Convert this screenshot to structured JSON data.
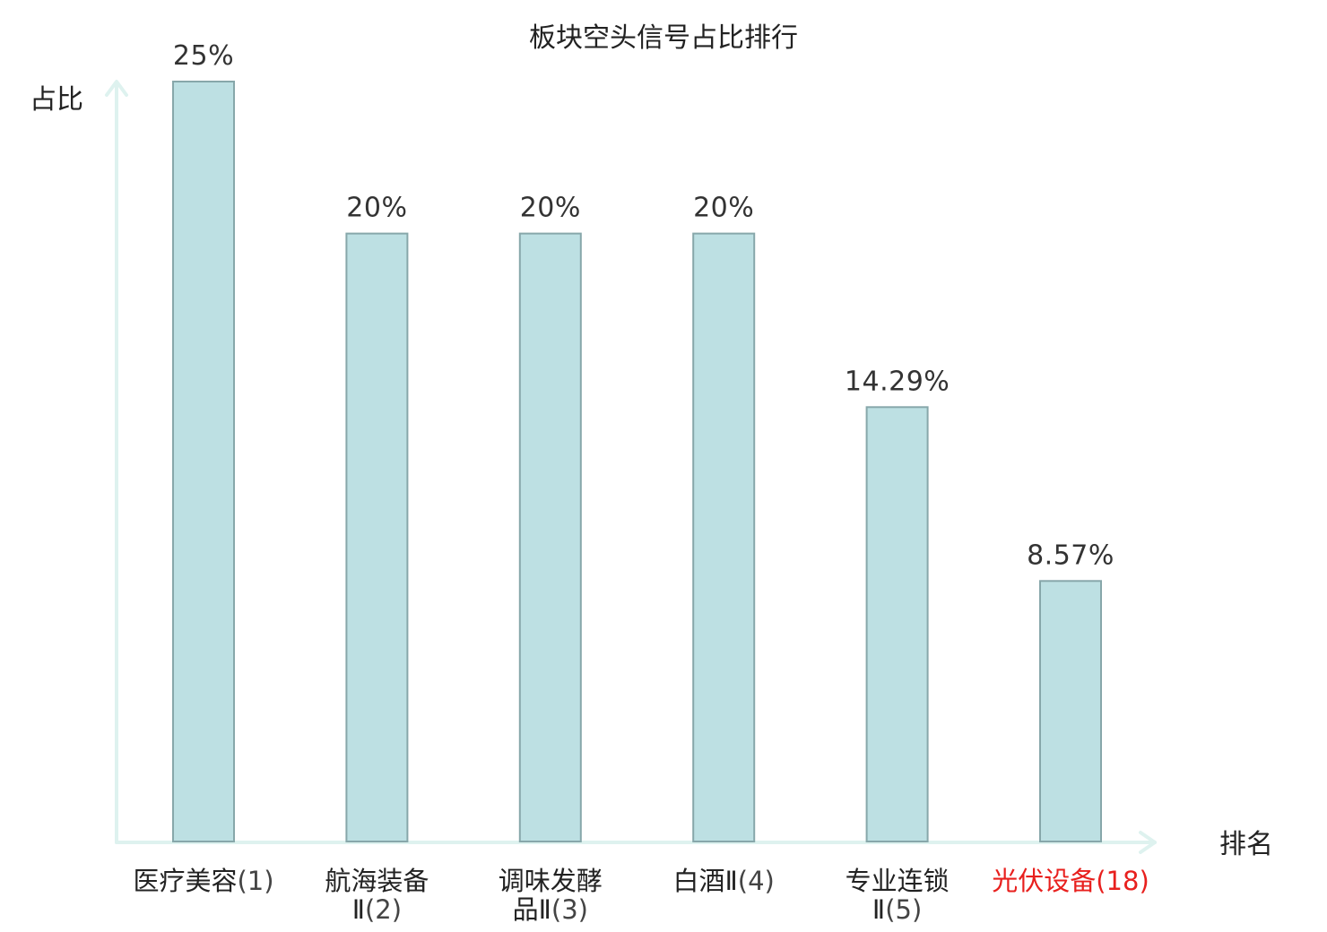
{
  "chart_data": {
    "type": "bar",
    "title": "板块空头信号占比排行",
    "xlabel": "排名",
    "ylabel": "占比",
    "ylim": [
      0,
      25
    ],
    "grid": false,
    "categories": [
      {
        "name_lines": [
          "医疗美容"
        ],
        "rank": "(1)"
      },
      {
        "name_lines": [
          "航海装备",
          "Ⅱ"
        ],
        "rank": "(2)"
      },
      {
        "name_lines": [
          "调味发酵",
          "品Ⅱ"
        ],
        "rank": "(3)"
      },
      {
        "name_lines": [
          "白酒Ⅱ"
        ],
        "rank": "(4)"
      },
      {
        "name_lines": [
          "专业连锁",
          "Ⅱ"
        ],
        "rank": "(5)"
      },
      {
        "name_lines": [
          "光伏设备"
        ],
        "rank": "(18)",
        "highlight": true
      }
    ],
    "values": [
      25,
      20,
      20,
      20,
      14.29,
      8.57
    ],
    "value_labels": [
      "25%",
      "20%",
      "20%",
      "20%",
      "14.29%",
      "8.57%"
    ],
    "colors": {
      "bar_fill": "#bde0e3",
      "bar_stroke": "#87a7aa",
      "axis": "#def2ef",
      "highlight": "#e8201e"
    }
  }
}
